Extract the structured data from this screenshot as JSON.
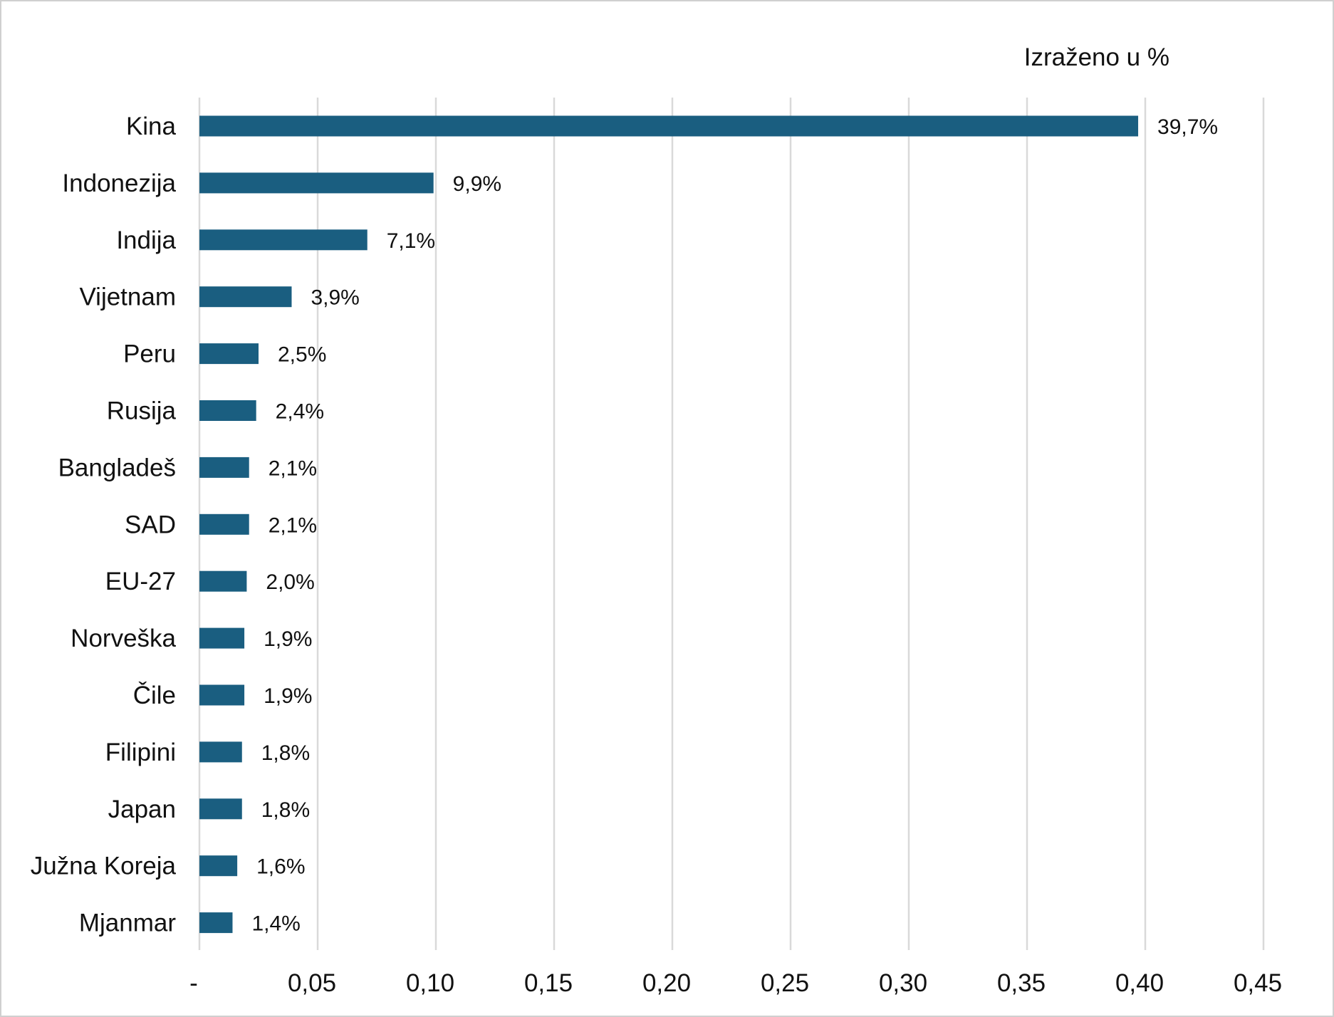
{
  "chart_data": {
    "type": "bar",
    "orientation": "horizontal",
    "unit_note": "Izraženo u %",
    "categories": [
      "Kina",
      "Indonezija",
      "Indija",
      "Vijetnam",
      "Peru",
      "Rusija",
      "Bangladeš",
      "SAD",
      "EU-27",
      "Norveška",
      "Čile",
      "Filipini",
      "Japan",
      "Južna Koreja",
      "Mjanmar"
    ],
    "values": [
      0.397,
      0.099,
      0.071,
      0.039,
      0.025,
      0.024,
      0.021,
      0.021,
      0.02,
      0.019,
      0.019,
      0.018,
      0.018,
      0.016,
      0.014
    ],
    "data_labels": [
      "39,7%",
      "9,9%",
      "7,1%",
      "3,9%",
      "2,5%",
      "2,4%",
      "2,1%",
      "2,1%",
      "2,0%",
      "1,9%",
      "1,9%",
      "1,8%",
      "1,8%",
      "1,6%",
      "1,4%"
    ],
    "xlim": [
      0,
      0.45
    ],
    "x_ticks": [
      0,
      0.05,
      0.1,
      0.15,
      0.2,
      0.25,
      0.3,
      0.35,
      0.4,
      0.45
    ],
    "x_tick_labels": [
      "-",
      "0,05",
      "0,10",
      "0,15",
      "0,20",
      "0,25",
      "0,30",
      "0,35",
      "0,40",
      "0,45"
    ],
    "grid": "vertical",
    "bar_color": "#1a5e80",
    "title": "",
    "xlabel": "",
    "ylabel": ""
  }
}
